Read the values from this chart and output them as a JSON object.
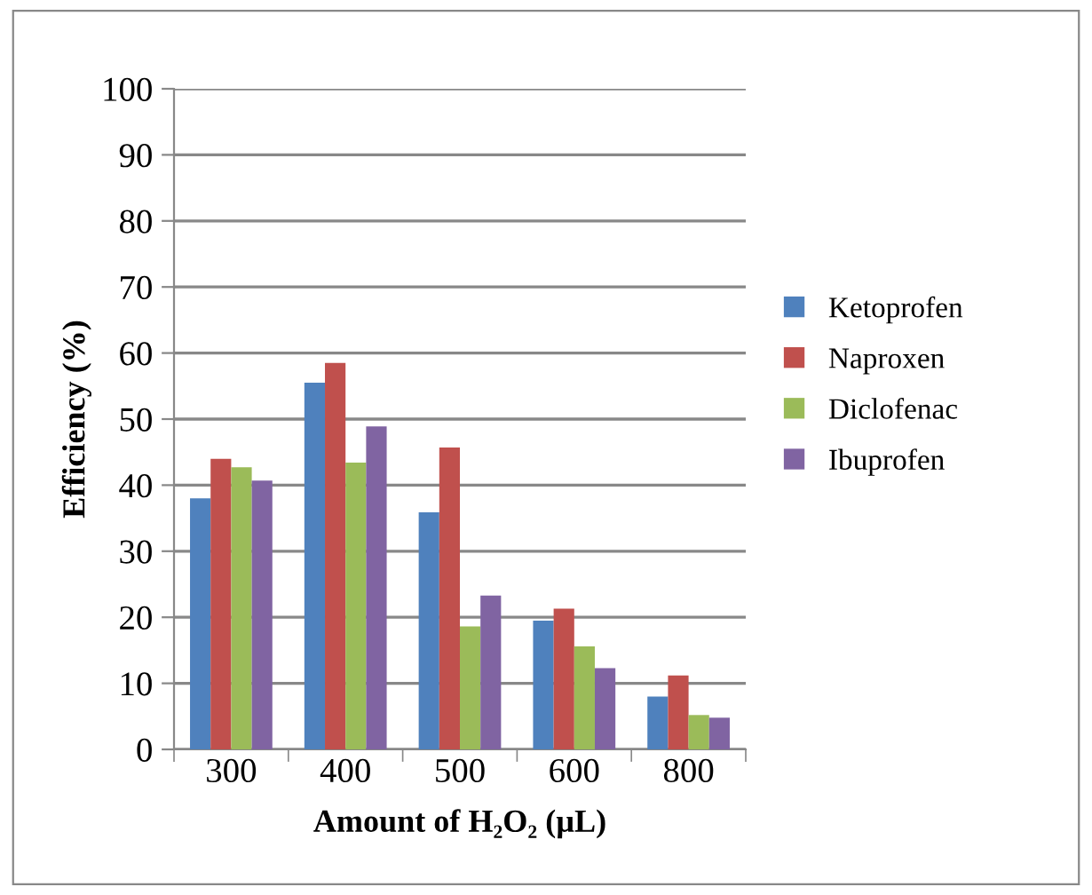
{
  "chart_data": {
    "type": "bar",
    "xlabel": "Amount of H₂O₂ (µL)",
    "ylabel": "Efficiency (%)",
    "categories": [
      "300",
      "400",
      "500",
      "600",
      "800"
    ],
    "series": [
      {
        "name": "Ketoprofen",
        "color": "#4f81bd",
        "values": [
          38.0,
          55.5,
          35.9,
          19.5,
          8.0
        ]
      },
      {
        "name": "Naproxen",
        "color": "#c0504d",
        "values": [
          44.0,
          58.5,
          45.7,
          21.3,
          11.2
        ]
      },
      {
        "name": "Diclofenac",
        "color": "#9bbb59",
        "values": [
          42.7,
          43.4,
          18.6,
          15.6,
          5.2
        ]
      },
      {
        "name": "Ibuprofen",
        "color": "#8064a2",
        "values": [
          40.7,
          48.9,
          23.3,
          12.3,
          4.8
        ]
      }
    ],
    "ylim": [
      0,
      100
    ],
    "yticks": [
      0,
      10,
      20,
      30,
      40,
      50,
      60,
      70,
      80,
      90,
      100
    ],
    "grid": "y",
    "legend": "right"
  }
}
